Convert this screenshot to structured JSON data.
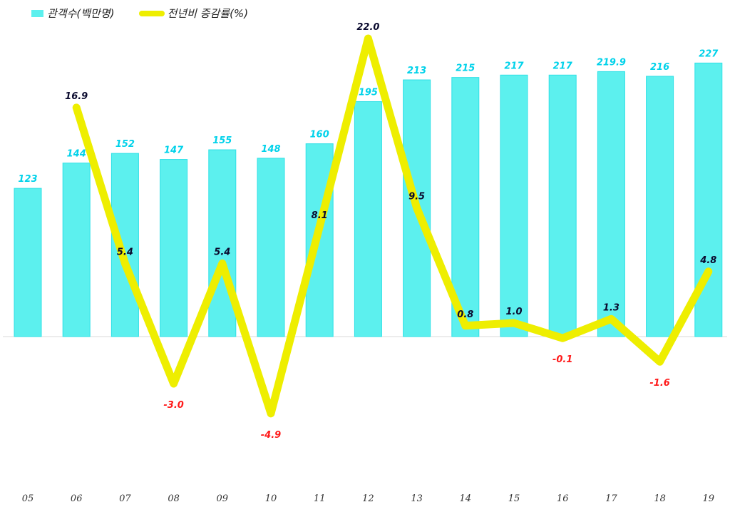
{
  "chart_data": {
    "type": "bar+line",
    "title": "",
    "categories": [
      "05",
      "06",
      "07",
      "08",
      "09",
      "10",
      "11",
      "12",
      "13",
      "14",
      "15",
      "16",
      "17",
      "18",
      "19"
    ],
    "series": [
      {
        "name": "관객수(백만명)",
        "type": "bar",
        "color": "#5CF0EE",
        "values": [
          123,
          144,
          152,
          147,
          155,
          148,
          160,
          195,
          213,
          215,
          217,
          217,
          219.9,
          216,
          227
        ],
        "labels": [
          "123",
          "144",
          "152",
          "147",
          "155",
          "148",
          "160",
          "195",
          "213",
          "215",
          "217",
          "217",
          "219.9",
          "216",
          "227"
        ]
      },
      {
        "name": "전년비 증감률(%)",
        "type": "line",
        "color": "#EEEE00",
        "values": [
          null,
          16.9,
          5.4,
          -3.0,
          5.4,
          -4.9,
          8.1,
          22.0,
          9.5,
          0.8,
          1.0,
          -0.1,
          1.3,
          -1.6,
          4.8
        ],
        "labels": [
          "",
          "16.9",
          "5.4",
          "-3.0",
          "5.4",
          "-4.9",
          "8.1",
          "22.0",
          "9.5",
          "0.8",
          "1.0",
          "-0.1",
          "1.3",
          "-1.6",
          "4.8"
        ]
      }
    ],
    "legend": {
      "position": "top-left",
      "entries": [
        "관객수(백만명)",
        "전년비 증감률(%)"
      ]
    },
    "xlabel": "",
    "ylabel": "",
    "bar_ylim": [
      0,
      280
    ],
    "line_ylim": [
      -9,
      22
    ],
    "grid": false
  },
  "legend": {
    "bar_label": "관객수(백만명)",
    "line_label": "전년비 증감률(%)"
  }
}
